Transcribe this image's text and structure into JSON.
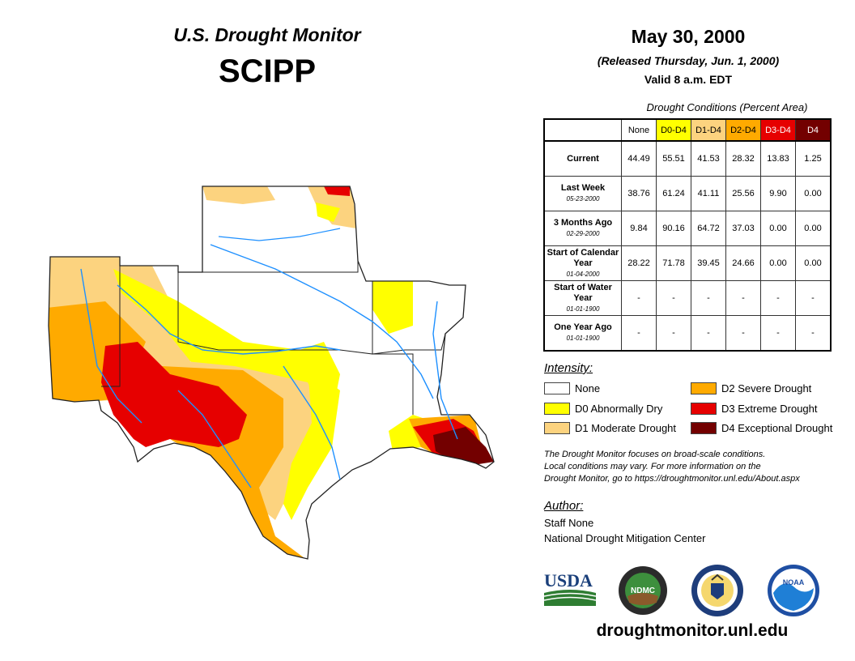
{
  "header": {
    "title": "U.S. Drought Monitor",
    "region": "SCIPP",
    "date": "May 30, 2000",
    "released": "(Released Thursday, Jun. 1, 2000)",
    "valid": "Valid 8 a.m. EDT"
  },
  "table": {
    "caption": "Drought Conditions (Percent Area)",
    "columns": [
      "None",
      "D0-D4",
      "D1-D4",
      "D2-D4",
      "D3-D4",
      "D4"
    ],
    "column_colors": [
      "#ffffff",
      "#ffff00",
      "#fcd37f",
      "#ffaa00",
      "#e60000",
      "#730000"
    ],
    "rows": [
      {
        "label": "Current",
        "sublabel": "",
        "values": [
          "44.49",
          "55.51",
          "41.53",
          "28.32",
          "13.83",
          "1.25"
        ]
      },
      {
        "label": "Last Week",
        "sublabel": "05-23-2000",
        "values": [
          "38.76",
          "61.24",
          "41.11",
          "25.56",
          "9.90",
          "0.00"
        ]
      },
      {
        "label": "3 Months Ago",
        "sublabel": "02-29-2000",
        "values": [
          "9.84",
          "90.16",
          "64.72",
          "37.03",
          "0.00",
          "0.00"
        ]
      },
      {
        "label": "Start of Calendar Year",
        "sublabel": "01-04-2000",
        "values": [
          "28.22",
          "71.78",
          "39.45",
          "24.66",
          "0.00",
          "0.00"
        ]
      },
      {
        "label": "Start of Water Year",
        "sublabel": "01-01-1900",
        "values": [
          "-",
          "-",
          "-",
          "-",
          "-",
          "-"
        ]
      },
      {
        "label": "One Year Ago",
        "sublabel": "01-01-1900",
        "values": [
          "-",
          "-",
          "-",
          "-",
          "-",
          "-"
        ]
      }
    ]
  },
  "legend": {
    "title": "Intensity:",
    "items": [
      {
        "label": "None",
        "color": "#ffffff"
      },
      {
        "label": "D0 Abnormally Dry",
        "color": "#ffff00"
      },
      {
        "label": "D1 Moderate Drought",
        "color": "#fcd37f"
      },
      {
        "label": "D2 Severe Drought",
        "color": "#ffaa00"
      },
      {
        "label": "D3 Extreme Drought",
        "color": "#e60000"
      },
      {
        "label": "D4 Exceptional Drought",
        "color": "#730000"
      }
    ]
  },
  "note": {
    "line1": "The Drought Monitor focuses on broad-scale conditions.",
    "line2": "Local conditions may vary. For more information on the",
    "line3": "Drought Monitor, go to https://droughtmonitor.unl.edu/About.aspx"
  },
  "author": {
    "title": "Author:",
    "name": "Staff None",
    "org": "National Drought Mitigation Center"
  },
  "logos": {
    "usda": "USDA",
    "ndmc": "NDMC",
    "noaa": "NOAA"
  },
  "footer": {
    "url": "droughtmonitor.unl.edu"
  }
}
